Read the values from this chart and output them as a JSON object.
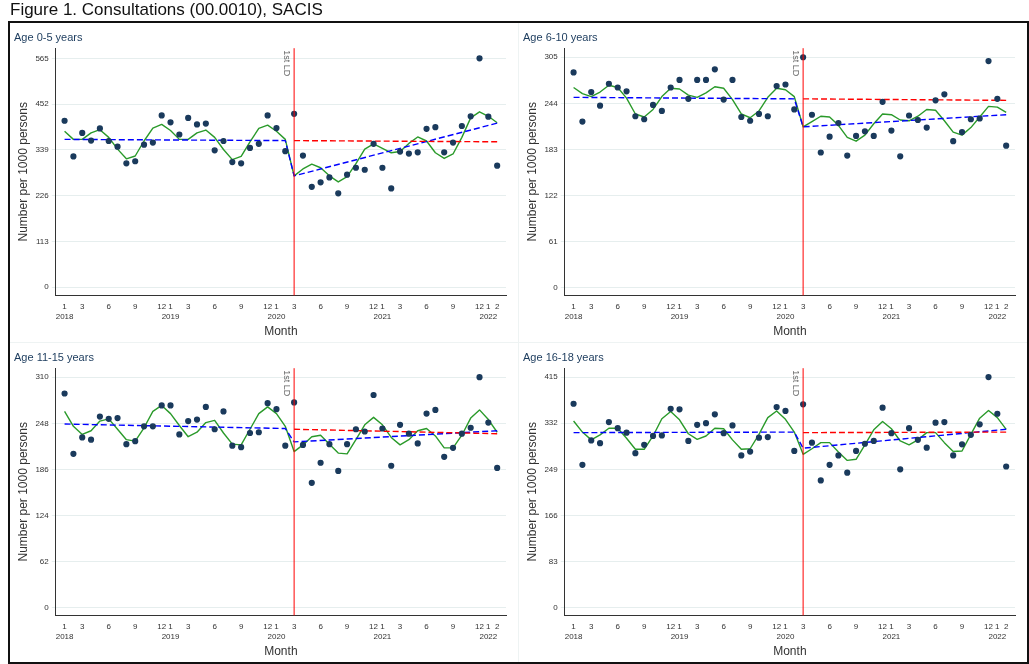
{
  "chart_data": [
    {
      "type": "scatter",
      "title": "Figure 1. Consultations (00.0010), SACIS",
      "subtitle": "Age 0-5 years",
      "xlabel": "Month",
      "ylabel": "Number per 1000 persons",
      "xlim": [
        "2017-12",
        "2022-03"
      ],
      "ylim": [
        -20,
        590
      ],
      "yticks": [
        0,
        113,
        226,
        339,
        452,
        565
      ],
      "xticks": [
        {
          "value": "2018-01",
          "label": "1\n2018"
        },
        {
          "value": "2018-03",
          "label": "3"
        },
        {
          "value": "2018-06",
          "label": "6"
        },
        {
          "value": "2018-09",
          "label": "9"
        },
        {
          "value": "2018-12",
          "label": "12"
        },
        {
          "value": "2019-01",
          "label": "1\n2019"
        },
        {
          "value": "2019-03",
          "label": "3"
        },
        {
          "value": "2019-06",
          "label": "6"
        },
        {
          "value": "2019-09",
          "label": "9"
        },
        {
          "value": "2019-12",
          "label": "12"
        },
        {
          "value": "2020-01",
          "label": "1\n2020"
        },
        {
          "value": "2020-03",
          "label": "3"
        },
        {
          "value": "2020-06",
          "label": "6"
        },
        {
          "value": "2020-09",
          "label": "9"
        },
        {
          "value": "2020-12",
          "label": "12"
        },
        {
          "value": "2021-01",
          "label": "1\n2021"
        },
        {
          "value": "2021-03",
          "label": "3"
        },
        {
          "value": "2021-06",
          "label": "6"
        },
        {
          "value": "2021-09",
          "label": "9"
        },
        {
          "value": "2021-12",
          "label": "12"
        },
        {
          "value": "2022-01",
          "label": "1\n2022"
        },
        {
          "value": "2022-02",
          "label": "2"
        }
      ],
      "grid": "y",
      "legend": false,
      "ref_lines": [
        {
          "axis": "x",
          "value": "2020-03",
          "label": "1st LD",
          "color": "#ff0000"
        }
      ],
      "series": [
        {
          "color": "#1a3a5c",
          "marker": "circle",
          "x": [
            "2018-01",
            "2018-02",
            "2018-03",
            "2018-04",
            "2018-05",
            "2018-06",
            "2018-07",
            "2018-08",
            "2018-09",
            "2018-10",
            "2018-11",
            "2018-12",
            "2019-01",
            "2019-02",
            "2019-03",
            "2019-04",
            "2019-05",
            "2019-06",
            "2019-07",
            "2019-08",
            "2019-09",
            "2019-10",
            "2019-11",
            "2019-12",
            "2020-01",
            "2020-02",
            "2020-03",
            "2020-04",
            "2020-05",
            "2020-06",
            "2020-07",
            "2020-08",
            "2020-09",
            "2020-10",
            "2020-11",
            "2020-12",
            "2021-01",
            "2021-02",
            "2021-03",
            "2021-04",
            "2021-05",
            "2021-06",
            "2021-07",
            "2021-08",
            "2021-09",
            "2021-10",
            "2021-11",
            "2021-12",
            "2022-01",
            "2022-02"
          ],
          "values": [
            411,
            323,
            381,
            362,
            392,
            361,
            347,
            306,
            311,
            352,
            357,
            424,
            407,
            377,
            418,
            402,
            404,
            338,
            361,
            309,
            306,
            344,
            354,
            424,
            393,
            336,
            428,
            325,
            248,
            259,
            271,
            232,
            278,
            295,
            290,
            354,
            295,
            244,
            335,
            330,
            333,
            391,
            395,
            333,
            357,
            398,
            422,
            565,
            421,
            300
          ]
        },
        {
          "type": "line",
          "color": "#2a9a2a",
          "marker": "none",
          "line_style": "solid",
          "x": [
            "2018-01",
            "2018-02",
            "2018-03",
            "2018-04",
            "2018-05",
            "2018-06",
            "2018-07",
            "2018-08",
            "2018-09",
            "2018-10",
            "2018-11",
            "2018-12",
            "2019-01",
            "2019-02",
            "2019-03",
            "2019-04",
            "2019-05",
            "2019-06",
            "2019-07",
            "2019-08",
            "2019-09",
            "2019-10",
            "2019-11",
            "2019-12",
            "2020-01",
            "2020-02",
            "2020-03",
            "2020-04",
            "2020-05",
            "2020-06",
            "2020-07",
            "2020-08",
            "2020-09",
            "2020-10",
            "2020-11",
            "2020-12",
            "2021-01",
            "2021-02",
            "2021-03",
            "2021-04",
            "2021-05",
            "2021-06",
            "2021-07",
            "2021-08",
            "2021-09",
            "2021-10",
            "2021-11",
            "2021-12",
            "2022-01",
            "2022-02"
          ],
          "values": [
            385,
            365,
            365,
            381,
            389,
            370,
            341,
            317,
            324,
            361,
            393,
            402,
            387,
            365,
            365,
            381,
            388,
            370,
            340,
            315,
            323,
            359,
            392,
            400,
            385,
            365,
            275,
            292,
            304,
            295,
            275,
            260,
            273,
            305,
            341,
            354,
            343,
            332,
            335,
            355,
            371,
            361,
            332,
            318,
            329,
            370,
            418,
            433,
            422,
            406
          ]
        },
        {
          "type": "line",
          "color": "#0000ff",
          "marker": "none",
          "line_style": "dashed",
          "x": [
            "2018-01",
            "2020-02",
            "2020-03",
            "2022-02"
          ],
          "values": [
            365,
            362,
            275,
            405
          ]
        },
        {
          "type": "line",
          "color": "#ff0000",
          "marker": "none",
          "line_style": "dashed",
          "x": [
            "2020-03",
            "2022-02"
          ],
          "values": [
            362,
            359
          ]
        }
      ]
    },
    {
      "type": "scatter",
      "subtitle": "Age 6-10 years",
      "xlabel": "Month",
      "ylabel": "Number per 1000 persons",
      "xlim": [
        "2017-12",
        "2022-03"
      ],
      "ylim": [
        -10,
        317
      ],
      "yticks": [
        0,
        61,
        122,
        183,
        244,
        305
      ],
      "xticks": [
        {
          "value": "2018-01",
          "label": "1\n2018"
        },
        {
          "value": "2018-03",
          "label": "3"
        },
        {
          "value": "2018-06",
          "label": "6"
        },
        {
          "value": "2018-09",
          "label": "9"
        },
        {
          "value": "2018-12",
          "label": "12"
        },
        {
          "value": "2019-01",
          "label": "1\n2019"
        },
        {
          "value": "2019-03",
          "label": "3"
        },
        {
          "value": "2019-06",
          "label": "6"
        },
        {
          "value": "2019-09",
          "label": "9"
        },
        {
          "value": "2019-12",
          "label": "12"
        },
        {
          "value": "2020-01",
          "label": "1\n2020"
        },
        {
          "value": "2020-03",
          "label": "3"
        },
        {
          "value": "2020-06",
          "label": "6"
        },
        {
          "value": "2020-09",
          "label": "9"
        },
        {
          "value": "2020-12",
          "label": "12"
        },
        {
          "value": "2021-01",
          "label": "1\n2021"
        },
        {
          "value": "2021-03",
          "label": "3"
        },
        {
          "value": "2021-06",
          "label": "6"
        },
        {
          "value": "2021-09",
          "label": "9"
        },
        {
          "value": "2021-12",
          "label": "12"
        },
        {
          "value": "2022-01",
          "label": "1\n2022"
        },
        {
          "value": "2022-02",
          "label": "2"
        }
      ],
      "grid": "y",
      "legend": false,
      "ref_lines": [
        {
          "axis": "x",
          "value": "2020-03",
          "label": "1st LD",
          "color": "#ff0000"
        }
      ],
      "series": [
        {
          "color": "#1a3a5c",
          "marker": "circle",
          "x": [
            "2018-01",
            "2018-02",
            "2018-03",
            "2018-04",
            "2018-05",
            "2018-06",
            "2018-07",
            "2018-08",
            "2018-09",
            "2018-10",
            "2018-11",
            "2018-12",
            "2019-01",
            "2019-02",
            "2019-03",
            "2019-04",
            "2019-05",
            "2019-06",
            "2019-07",
            "2019-08",
            "2019-09",
            "2019-10",
            "2019-11",
            "2019-12",
            "2020-01",
            "2020-02",
            "2020-03",
            "2020-04",
            "2020-05",
            "2020-06",
            "2020-07",
            "2020-08",
            "2020-09",
            "2020-10",
            "2020-11",
            "2020-12",
            "2021-01",
            "2021-02",
            "2021-03",
            "2021-04",
            "2021-05",
            "2021-06",
            "2021-07",
            "2021-08",
            "2021-09",
            "2021-10",
            "2021-11",
            "2021-12",
            "2022-01",
            "2022-02"
          ],
          "values": [
            285,
            220,
            259,
            241,
            270,
            265,
            260,
            227,
            223,
            242,
            234,
            265,
            275,
            250,
            275,
            275,
            289,
            249,
            275,
            226,
            221,
            230,
            227,
            267,
            269,
            236,
            305,
            229,
            179,
            200,
            218,
            175,
            201,
            207,
            201,
            246,
            208,
            174,
            228,
            222,
            212,
            248,
            256,
            194,
            206,
            223,
            224,
            300,
            250,
            188
          ]
        },
        {
          "type": "line",
          "color": "#2a9a2a",
          "marker": "none",
          "line_style": "solid",
          "x": [
            "2018-01",
            "2018-02",
            "2018-03",
            "2018-04",
            "2018-05",
            "2018-06",
            "2018-07",
            "2018-08",
            "2018-09",
            "2018-10",
            "2018-11",
            "2018-12",
            "2019-01",
            "2019-02",
            "2019-03",
            "2019-04",
            "2019-05",
            "2019-06",
            "2019-07",
            "2019-08",
            "2019-09",
            "2019-10",
            "2019-11",
            "2019-12",
            "2020-01",
            "2020-02",
            "2020-03",
            "2020-04",
            "2020-05",
            "2020-06",
            "2020-07",
            "2020-08",
            "2020-09",
            "2020-10",
            "2020-11",
            "2020-12",
            "2021-01",
            "2021-02",
            "2021-03",
            "2021-04",
            "2021-05",
            "2021-06",
            "2021-07",
            "2021-08",
            "2021-09",
            "2021-10",
            "2021-11",
            "2021-12",
            "2022-01",
            "2022-02"
          ],
          "values": [
            265,
            257,
            253,
            259,
            268,
            265,
            251,
            230,
            226,
            236,
            253,
            264,
            263,
            255,
            252,
            258,
            266,
            264,
            249,
            230,
            225,
            234,
            252,
            264,
            262,
            253,
            213,
            220,
            227,
            226,
            215,
            199,
            194,
            202,
            217,
            230,
            229,
            222,
            221,
            227,
            236,
            235,
            221,
            206,
            202,
            212,
            226,
            240,
            239,
            232
          ]
        },
        {
          "type": "line",
          "color": "#0000ff",
          "marker": "none",
          "line_style": "dashed",
          "x": [
            "2018-01",
            "2020-02",
            "2020-03",
            "2022-02"
          ],
          "values": [
            252,
            250,
            213,
            229
          ]
        },
        {
          "type": "line",
          "color": "#ff0000",
          "marker": "none",
          "line_style": "dashed",
          "x": [
            "2020-03",
            "2022-02"
          ],
          "values": [
            250,
            248
          ]
        }
      ]
    },
    {
      "type": "scatter",
      "subtitle": "Age 11-15 years",
      "xlabel": "Month",
      "ylabel": "Number per 1000 persons",
      "xlim": [
        "2017-12",
        "2022-03"
      ],
      "ylim": [
        -10,
        322
      ],
      "yticks": [
        0,
        62,
        124,
        186,
        248,
        310
      ],
      "xticks": [
        {
          "value": "2018-01",
          "label": "1\n2018"
        },
        {
          "value": "2018-03",
          "label": "3"
        },
        {
          "value": "2018-06",
          "label": "6"
        },
        {
          "value": "2018-09",
          "label": "9"
        },
        {
          "value": "2018-12",
          "label": "12"
        },
        {
          "value": "2019-01",
          "label": "1\n2019"
        },
        {
          "value": "2019-03",
          "label": "3"
        },
        {
          "value": "2019-06",
          "label": "6"
        },
        {
          "value": "2019-09",
          "label": "9"
        },
        {
          "value": "2019-12",
          "label": "12"
        },
        {
          "value": "2020-01",
          "label": "1\n2020"
        },
        {
          "value": "2020-03",
          "label": "3"
        },
        {
          "value": "2020-06",
          "label": "6"
        },
        {
          "value": "2020-09",
          "label": "9"
        },
        {
          "value": "2020-12",
          "label": "12"
        },
        {
          "value": "2021-01",
          "label": "1\n2021"
        },
        {
          "value": "2021-03",
          "label": "3"
        },
        {
          "value": "2021-06",
          "label": "6"
        },
        {
          "value": "2021-09",
          "label": "9"
        },
        {
          "value": "2021-12",
          "label": "12"
        },
        {
          "value": "2022-01",
          "label": "1\n2022"
        },
        {
          "value": "2022-02",
          "label": "2"
        }
      ],
      "grid": "y",
      "legend": false,
      "ref_lines": [
        {
          "axis": "x",
          "value": "2020-03",
          "label": "1st LD",
          "color": "#ff0000"
        }
      ],
      "series": [
        {
          "color": "#1a3a5c",
          "marker": "circle",
          "x": [
            "2018-01",
            "2018-02",
            "2018-03",
            "2018-04",
            "2018-05",
            "2018-06",
            "2018-07",
            "2018-08",
            "2018-09",
            "2018-10",
            "2018-11",
            "2018-12",
            "2019-01",
            "2019-02",
            "2019-03",
            "2019-04",
            "2019-05",
            "2019-06",
            "2019-07",
            "2019-08",
            "2019-09",
            "2019-10",
            "2019-11",
            "2019-12",
            "2020-01",
            "2020-02",
            "2020-03",
            "2020-04",
            "2020-05",
            "2020-06",
            "2020-07",
            "2020-08",
            "2020-09",
            "2020-10",
            "2020-11",
            "2020-12",
            "2021-01",
            "2021-02",
            "2021-03",
            "2021-04",
            "2021-05",
            "2021-06",
            "2021-07",
            "2021-08",
            "2021-09",
            "2021-10",
            "2021-11",
            "2021-12",
            "2022-01",
            "2022-02"
          ],
          "values": [
            288,
            207,
            229,
            226,
            257,
            254,
            255,
            220,
            224,
            244,
            244,
            272,
            272,
            233,
            251,
            253,
            270,
            240,
            264,
            218,
            216,
            235,
            236,
            275,
            267,
            218,
            276,
            219,
            168,
            195,
            220,
            184,
            220,
            240,
            237,
            286,
            241,
            191,
            246,
            234,
            221,
            261,
            266,
            203,
            215,
            234,
            242,
            310,
            249,
            188
          ]
        },
        {
          "type": "line",
          "color": "#2a9a2a",
          "marker": "none",
          "line_style": "solid",
          "x": [
            "2018-01",
            "2018-02",
            "2018-03",
            "2018-04",
            "2018-05",
            "2018-06",
            "2018-07",
            "2018-08",
            "2018-09",
            "2018-10",
            "2018-11",
            "2018-12",
            "2019-01",
            "2019-02",
            "2019-03",
            "2019-04",
            "2019-05",
            "2019-06",
            "2019-07",
            "2019-08",
            "2019-09",
            "2019-10",
            "2019-11",
            "2019-12",
            "2020-01",
            "2020-02",
            "2020-03",
            "2020-04",
            "2020-05",
            "2020-06",
            "2020-07",
            "2020-08",
            "2020-09",
            "2020-10",
            "2020-11",
            "2020-12",
            "2021-01",
            "2021-02",
            "2021-03",
            "2021-04",
            "2021-05",
            "2021-06",
            "2021-07",
            "2021-08",
            "2021-09",
            "2021-10",
            "2021-11",
            "2021-12",
            "2022-01",
            "2022-02"
          ],
          "values": [
            264,
            244,
            233,
            238,
            251,
            254,
            240,
            226,
            224,
            242,
            264,
            272,
            261,
            245,
            230,
            236,
            249,
            252,
            235,
            220,
            219,
            240,
            261,
            270,
            261,
            244,
            210,
            219,
            230,
            232,
            220,
            208,
            207,
            226,
            246,
            256,
            246,
            229,
            219,
            226,
            238,
            241,
            231,
            215,
            215,
            232,
            255,
            266,
            253,
            236
          ]
        },
        {
          "type": "line",
          "color": "#0000ff",
          "marker": "none",
          "line_style": "dashed",
          "x": [
            "2018-01",
            "2020-02",
            "2020-03",
            "2022-02"
          ],
          "values": [
            247,
            241,
            223,
            238
          ]
        },
        {
          "type": "line",
          "color": "#ff0000",
          "marker": "none",
          "line_style": "dashed",
          "x": [
            "2020-03",
            "2022-02"
          ],
          "values": [
            240,
            234
          ]
        }
      ]
    },
    {
      "type": "scatter",
      "subtitle": "Age 16-18 years",
      "xlabel": "Month",
      "ylabel": "Number per 1000 persons",
      "xlim": [
        "2017-12",
        "2022-03"
      ],
      "ylim": [
        -14,
        431
      ],
      "yticks": [
        0,
        83,
        166,
        249,
        332,
        415
      ],
      "xticks": [
        {
          "value": "2018-01",
          "label": "1\n2018"
        },
        {
          "value": "2018-03",
          "label": "3"
        },
        {
          "value": "2018-06",
          "label": "6"
        },
        {
          "value": "2018-09",
          "label": "9"
        },
        {
          "value": "2018-12",
          "label": "12"
        },
        {
          "value": "2019-01",
          "label": "1\n2019"
        },
        {
          "value": "2019-03",
          "label": "3"
        },
        {
          "value": "2019-06",
          "label": "6"
        },
        {
          "value": "2019-09",
          "label": "9"
        },
        {
          "value": "2019-12",
          "label": "12"
        },
        {
          "value": "2020-01",
          "label": "1\n2020"
        },
        {
          "value": "2020-03",
          "label": "3"
        },
        {
          "value": "2020-06",
          "label": "6"
        },
        {
          "value": "2020-09",
          "label": "9"
        },
        {
          "value": "2020-12",
          "label": "12"
        },
        {
          "value": "2021-01",
          "label": "1\n2021"
        },
        {
          "value": "2021-03",
          "label": "3"
        },
        {
          "value": "2021-06",
          "label": "6"
        },
        {
          "value": "2021-09",
          "label": "9"
        },
        {
          "value": "2021-12",
          "label": "12"
        },
        {
          "value": "2022-01",
          "label": "1\n2022"
        },
        {
          "value": "2022-02",
          "label": "2"
        }
      ],
      "grid": "y",
      "legend": false,
      "ref_lines": [
        {
          "axis": "x",
          "value": "2020-03",
          "label": "1st LD",
          "color": "#ff0000"
        }
      ],
      "series": [
        {
          "color": "#1a3a5c",
          "marker": "circle",
          "x": [
            "2018-01",
            "2018-02",
            "2018-03",
            "2018-04",
            "2018-05",
            "2018-06",
            "2018-07",
            "2018-08",
            "2018-09",
            "2018-10",
            "2018-11",
            "2018-12",
            "2019-01",
            "2019-02",
            "2019-03",
            "2019-04",
            "2019-05",
            "2019-06",
            "2019-07",
            "2019-08",
            "2019-09",
            "2019-10",
            "2019-11",
            "2019-12",
            "2020-01",
            "2020-02",
            "2020-03",
            "2020-04",
            "2020-05",
            "2020-06",
            "2020-07",
            "2020-08",
            "2020-09",
            "2020-10",
            "2020-11",
            "2020-12",
            "2021-01",
            "2021-02",
            "2021-03",
            "2021-04",
            "2021-05",
            "2021-06",
            "2021-07",
            "2021-08",
            "2021-09",
            "2021-10",
            "2021-11",
            "2021-12",
            "2022-01",
            "2022-02"
          ],
          "values": [
            367,
            257,
            301,
            296,
            334,
            323,
            315,
            278,
            293,
            309,
            310,
            358,
            357,
            300,
            329,
            332,
            348,
            314,
            328,
            274,
            281,
            306,
            307,
            361,
            354,
            282,
            366,
            297,
            229,
            257,
            274,
            243,
            282,
            295,
            300,
            360,
            314,
            249,
            323,
            302,
            288,
            333,
            334,
            274,
            294,
            311,
            330,
            415,
            349,
            254
          ]
        },
        {
          "type": "line",
          "color": "#2a9a2a",
          "marker": "none",
          "line_style": "solid",
          "x": [
            "2018-01",
            "2018-02",
            "2018-03",
            "2018-04",
            "2018-05",
            "2018-06",
            "2018-07",
            "2018-08",
            "2018-09",
            "2018-10",
            "2018-11",
            "2018-12",
            "2019-01",
            "2019-02",
            "2019-03",
            "2019-04",
            "2019-05",
            "2019-06",
            "2019-07",
            "2019-08",
            "2019-09",
            "2019-10",
            "2019-11",
            "2019-12",
            "2020-01",
            "2020-02",
            "2020-03",
            "2020-04",
            "2020-05",
            "2020-06",
            "2020-07",
            "2020-08",
            "2020-09",
            "2020-10",
            "2020-11",
            "2020-12",
            "2021-01",
            "2021-02",
            "2021-03",
            "2021-04",
            "2021-05",
            "2021-06",
            "2021-07",
            "2021-08",
            "2021-09",
            "2021-10",
            "2021-11",
            "2021-12",
            "2022-01",
            "2022-02"
          ],
          "values": [
            336,
            316,
            302,
            311,
            323,
            323,
            305,
            285,
            285,
            309,
            340,
            353,
            338,
            313,
            303,
            309,
            323,
            322,
            302,
            285,
            286,
            312,
            342,
            354,
            339,
            316,
            276,
            286,
            297,
            297,
            280,
            265,
            267,
            293,
            320,
            335,
            322,
            300,
            293,
            302,
            315,
            315,
            297,
            281,
            282,
            312,
            341,
            355,
            342,
            321
          ]
        },
        {
          "type": "line",
          "color": "#0000ff",
          "marker": "none",
          "line_style": "dashed",
          "x": [
            "2018-01",
            "2020-02",
            "2020-03",
            "2022-02"
          ],
          "values": [
            315,
            316,
            287,
            321
          ]
        },
        {
          "type": "line",
          "color": "#ff0000",
          "marker": "none",
          "line_style": "dashed",
          "x": [
            "2020-03",
            "2022-02"
          ],
          "values": [
            315,
            316
          ]
        }
      ]
    }
  ]
}
